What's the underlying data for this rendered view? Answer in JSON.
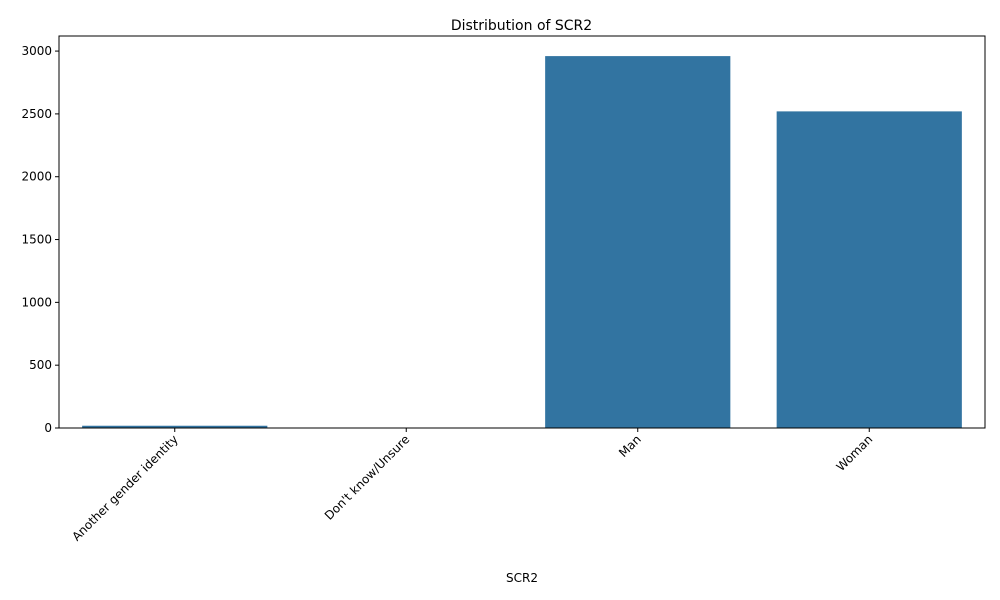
{
  "chart_data": {
    "type": "bar",
    "title": "Distribution of SCR2",
    "xlabel": "SCR2",
    "ylabel": "",
    "categories": [
      "Another gender identity",
      "Don't know/Unsure",
      "Man",
      "Woman"
    ],
    "values": [
      18,
      2,
      2960,
      2520
    ],
    "ylim": [
      0,
      3120
    ],
    "yticks": [
      0,
      500,
      1000,
      1500,
      2000,
      2500,
      3000
    ],
    "ytick_labels": [
      "0",
      "500",
      "1000",
      "1500",
      "2000",
      "2500",
      "3000"
    ],
    "bar_color": "#3274a1",
    "grid": false,
    "legend": "none",
    "xtick_rotation_deg": 45
  }
}
